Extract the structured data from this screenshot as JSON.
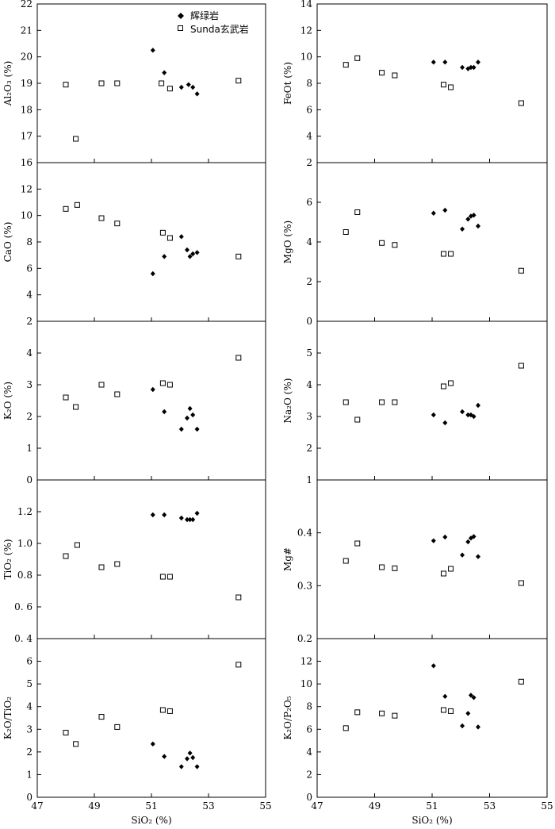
{
  "legend": {
    "series_a_name": "辉绿岩",
    "series_b_name": "Sunda玄武岩"
  },
  "chart_data": [
    {
      "id": "al2o3",
      "type": "scatter",
      "ylabel": "Al₂O₃ (%)",
      "xlim": [
        47,
        55
      ],
      "ylim": [
        16,
        22
      ],
      "xticks": [
        47,
        49,
        51,
        53,
        55
      ],
      "yticks": [
        16,
        17,
        18,
        19,
        20,
        21,
        22
      ],
      "ytick_labels": [
        "16",
        "17",
        "18",
        "19",
        "20",
        "21",
        "22"
      ],
      "series": [
        {
          "marker": "diamond",
          "x": [
            51.05,
            51.45,
            52.05,
            52.3,
            52.45,
            52.6
          ],
          "y": [
            20.25,
            19.4,
            18.85,
            18.95,
            18.85,
            18.6
          ]
        },
        {
          "marker": "square",
          "x": [
            48.0,
            48.35,
            49.25,
            49.8,
            51.35,
            51.65,
            54.05
          ],
          "y": [
            18.95,
            16.9,
            19.0,
            19.0,
            19.0,
            18.8,
            19.1
          ]
        }
      ]
    },
    {
      "id": "feot",
      "type": "scatter",
      "ylabel": "FeOt (%)",
      "xlim": [
        47,
        55
      ],
      "ylim": [
        2,
        14
      ],
      "xticks": [
        47,
        49,
        51,
        53,
        55
      ],
      "yticks": [
        2,
        4,
        6,
        8,
        10,
        12,
        14
      ],
      "ytick_labels": [
        "2",
        "4",
        "6",
        "8",
        "10",
        "12",
        "14"
      ],
      "series": [
        {
          "marker": "diamond",
          "x": [
            51.05,
            51.45,
            52.05,
            52.25,
            52.35,
            52.45,
            52.6
          ],
          "y": [
            9.6,
            9.6,
            9.2,
            9.1,
            9.2,
            9.2,
            9.6
          ]
        },
        {
          "marker": "square",
          "x": [
            48.0,
            48.4,
            49.25,
            49.7,
            51.4,
            51.65,
            54.1
          ],
          "y": [
            9.4,
            9.9,
            8.8,
            8.6,
            7.9,
            7.7,
            6.5
          ]
        }
      ]
    },
    {
      "id": "cao",
      "type": "scatter",
      "ylabel": "CaO (%)",
      "xlim": [
        47,
        55
      ],
      "ylim": [
        2,
        14
      ],
      "xticks": [
        47,
        49,
        51,
        53,
        55
      ],
      "yticks": [
        2,
        4,
        6,
        8,
        10,
        12
      ],
      "ytick_labels": [
        "2",
        "4",
        "6",
        "8",
        "10",
        "12"
      ],
      "series": [
        {
          "marker": "diamond",
          "x": [
            51.05,
            51.45,
            52.05,
            52.25,
            52.35,
            52.45,
            52.6
          ],
          "y": [
            5.6,
            6.9,
            8.4,
            7.4,
            6.9,
            7.1,
            7.2
          ]
        },
        {
          "marker": "square",
          "x": [
            48.0,
            48.4,
            49.25,
            49.8,
            51.4,
            51.65,
            54.05
          ],
          "y": [
            10.5,
            10.8,
            9.8,
            9.4,
            8.7,
            8.3,
            6.9
          ]
        }
      ]
    },
    {
      "id": "mgo",
      "type": "scatter",
      "ylabel": "MgO (%)",
      "xlim": [
        47,
        55
      ],
      "ylim": [
        0,
        8
      ],
      "xticks": [
        47,
        49,
        51,
        53,
        55
      ],
      "yticks": [
        0,
        2,
        4,
        6
      ],
      "ytick_labels": [
        "0",
        "2",
        "4",
        "6"
      ],
      "series": [
        {
          "marker": "diamond",
          "x": [
            51.05,
            51.45,
            52.05,
            52.25,
            52.35,
            52.45,
            52.6
          ],
          "y": [
            5.45,
            5.6,
            4.65,
            5.15,
            5.3,
            5.35,
            4.8
          ]
        },
        {
          "marker": "square",
          "x": [
            48.0,
            48.4,
            49.25,
            49.7,
            51.4,
            51.65,
            54.1
          ],
          "y": [
            4.5,
            5.5,
            3.95,
            3.85,
            3.4,
            3.4,
            2.55
          ]
        }
      ]
    },
    {
      "id": "k2o",
      "type": "scatter",
      "ylabel": "K₂O (%)",
      "xlim": [
        47,
        55
      ],
      "ylim": [
        0,
        5
      ],
      "xticks": [
        47,
        49,
        51,
        53,
        55
      ],
      "yticks": [
        0,
        1,
        2,
        3,
        4
      ],
      "ytick_labels": [
        "0",
        "1",
        "2",
        "3",
        "4"
      ],
      "series": [
        {
          "marker": "diamond",
          "x": [
            51.05,
            51.45,
            52.05,
            52.25,
            52.35,
            52.45,
            52.6
          ],
          "y": [
            2.85,
            2.15,
            1.6,
            1.95,
            2.25,
            2.05,
            1.6
          ]
        },
        {
          "marker": "square",
          "x": [
            48.0,
            48.35,
            49.25,
            49.8,
            51.4,
            51.65,
            54.05
          ],
          "y": [
            2.6,
            2.3,
            3.0,
            2.7,
            3.05,
            3.0,
            3.85
          ]
        }
      ]
    },
    {
      "id": "na2o",
      "type": "scatter",
      "ylabel": "Na₂O (%)",
      "xlim": [
        47,
        55
      ],
      "ylim": [
        1,
        6
      ],
      "xticks": [
        47,
        49,
        51,
        53,
        55
      ],
      "yticks": [
        1,
        2,
        3,
        4,
        5
      ],
      "ytick_labels": [
        "1",
        "2",
        "3",
        "4",
        "5"
      ],
      "series": [
        {
          "marker": "diamond",
          "x": [
            51.05,
            51.45,
            52.05,
            52.25,
            52.35,
            52.45,
            52.6
          ],
          "y": [
            3.05,
            2.8,
            3.15,
            3.05,
            3.05,
            3.0,
            3.35
          ]
        },
        {
          "marker": "square",
          "x": [
            48.0,
            48.4,
            49.25,
            49.7,
            51.4,
            51.65,
            54.1
          ],
          "y": [
            3.45,
            2.9,
            3.45,
            3.45,
            3.95,
            4.05,
            4.6
          ]
        }
      ]
    },
    {
      "id": "tio2",
      "type": "scatter",
      "ylabel": "TiO₂ (%)",
      "xlim": [
        47,
        55
      ],
      "ylim": [
        0.4,
        1.4
      ],
      "xticks": [
        47,
        49,
        51,
        53,
        55
      ],
      "yticks": [
        0.4,
        0.6,
        0.8,
        1.0,
        1.2
      ],
      "ytick_labels": [
        "0. 4",
        "0. 6",
        "0.8",
        "1.0",
        "1.2"
      ],
      "series": [
        {
          "marker": "diamond",
          "x": [
            51.05,
            51.45,
            52.05,
            52.25,
            52.35,
            52.45,
            52.6
          ],
          "y": [
            1.18,
            1.18,
            1.16,
            1.15,
            1.15,
            1.15,
            1.19
          ]
        },
        {
          "marker": "square",
          "x": [
            48.0,
            48.4,
            49.25,
            49.8,
            51.4,
            51.65,
            54.05
          ],
          "y": [
            0.92,
            0.99,
            0.85,
            0.87,
            0.79,
            0.79,
            0.66
          ]
        }
      ]
    },
    {
      "id": "mgnum",
      "type": "scatter",
      "ylabel": "Mg#",
      "xlim": [
        47,
        55
      ],
      "ylim": [
        0.2,
        0.5
      ],
      "xticks": [
        47,
        49,
        51,
        53,
        55
      ],
      "yticks": [
        0.2,
        0.3,
        0.4
      ],
      "ytick_labels": [
        "0.2",
        "0.3",
        "0.4"
      ],
      "series": [
        {
          "marker": "diamond",
          "x": [
            51.05,
            51.45,
            52.05,
            52.25,
            52.35,
            52.45,
            52.6
          ],
          "y": [
            0.385,
            0.392,
            0.358,
            0.383,
            0.39,
            0.393,
            0.355
          ]
        },
        {
          "marker": "square",
          "x": [
            48.0,
            48.4,
            49.25,
            49.7,
            51.4,
            51.65,
            54.1
          ],
          "y": [
            0.347,
            0.38,
            0.335,
            0.333,
            0.323,
            0.332,
            0.305
          ]
        }
      ]
    },
    {
      "id": "k2o_tio2",
      "type": "scatter",
      "ylabel": "K₂O/TiO₂",
      "xlabel": "SiO₂ (%)",
      "xlim": [
        47,
        55
      ],
      "ylim": [
        0,
        7
      ],
      "xticks": [
        47,
        49,
        51,
        53,
        55
      ],
      "xtick_labels": [
        "47",
        "49",
        "51",
        "53",
        "55"
      ],
      "yticks": [
        0,
        1,
        2,
        3,
        4,
        5,
        6
      ],
      "ytick_labels": [
        "0",
        "1",
        "2",
        "3",
        "4",
        "5",
        "6"
      ],
      "series": [
        {
          "marker": "diamond",
          "x": [
            51.05,
            51.45,
            52.05,
            52.25,
            52.35,
            52.45,
            52.6
          ],
          "y": [
            2.35,
            1.8,
            1.35,
            1.7,
            1.95,
            1.75,
            1.35
          ]
        },
        {
          "marker": "square",
          "x": [
            48.0,
            48.35,
            49.25,
            49.8,
            51.4,
            51.65,
            54.05
          ],
          "y": [
            2.85,
            2.35,
            3.55,
            3.1,
            3.85,
            3.8,
            5.85
          ]
        }
      ]
    },
    {
      "id": "k2o_p2o5",
      "type": "scatter",
      "ylabel": "K₂O/P₂O₅",
      "xlabel": "SiO₂ (%)",
      "xlim": [
        47,
        55
      ],
      "ylim": [
        0,
        14
      ],
      "xticks": [
        47,
        49,
        51,
        53,
        55
      ],
      "xtick_labels": [
        "47",
        "49",
        "51",
        "53",
        "55"
      ],
      "yticks": [
        0,
        2,
        4,
        6,
        8,
        10,
        12
      ],
      "ytick_labels": [
        "0",
        "2",
        "4",
        "6",
        "8",
        "10",
        "12"
      ],
      "series": [
        {
          "marker": "diamond",
          "x": [
            51.05,
            51.45,
            52.05,
            52.25,
            52.35,
            52.45,
            52.6
          ],
          "y": [
            11.6,
            8.9,
            6.3,
            7.4,
            9.0,
            8.8,
            6.2
          ]
        },
        {
          "marker": "square",
          "x": [
            48.0,
            48.4,
            49.25,
            49.7,
            51.4,
            51.65,
            54.1
          ],
          "y": [
            6.1,
            7.5,
            7.4,
            7.2,
            7.7,
            7.6,
            10.2
          ]
        }
      ]
    }
  ]
}
